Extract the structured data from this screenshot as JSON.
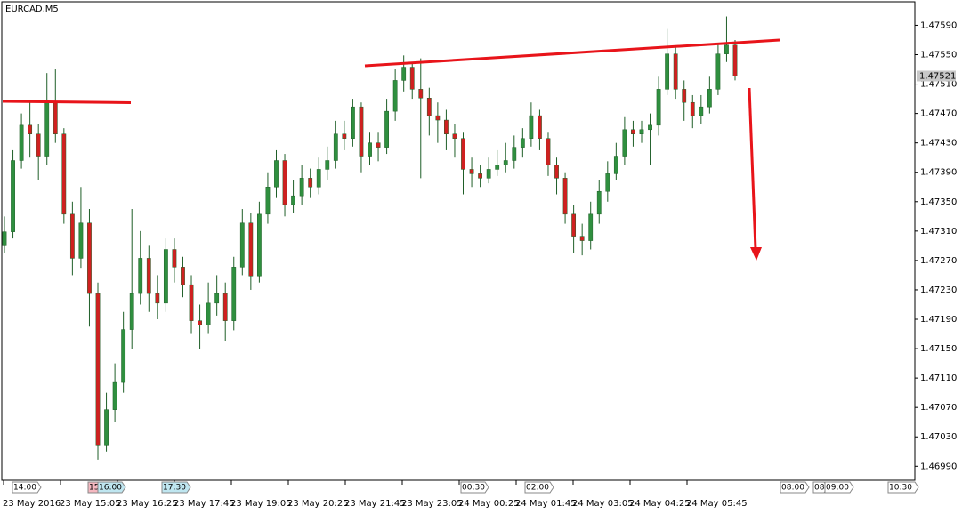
{
  "chart_data": {
    "type": "candlestick",
    "title": "EURCAD,M5",
    "up_color": "#2f8f3f",
    "down_color": "#d02020",
    "ylim": [
      1.46971,
      1.47622
    ],
    "yticks": [
      {
        "value": 1.4699,
        "label": "1.46990"
      },
      {
        "value": 1.4703,
        "label": "1.47030"
      },
      {
        "value": 1.4707,
        "label": "1.47070"
      },
      {
        "value": 1.4711,
        "label": "1.47110"
      },
      {
        "value": 1.4715,
        "label": "1.47150"
      },
      {
        "value": 1.4719,
        "label": "1.47190"
      },
      {
        "value": 1.4723,
        "label": "1.47230"
      },
      {
        "value": 1.4727,
        "label": "1.47270"
      },
      {
        "value": 1.4731,
        "label": "1.47310"
      },
      {
        "value": 1.4735,
        "label": "1.47350"
      },
      {
        "value": 1.4739,
        "label": "1.47390"
      },
      {
        "value": 1.4743,
        "label": "1.47430"
      },
      {
        "value": 1.4747,
        "label": "1.47470"
      },
      {
        "value": 1.4751,
        "label": "1.47510"
      },
      {
        "value": 1.4755,
        "label": "1.47550"
      },
      {
        "value": 1.4759,
        "label": "1.47590"
      }
    ],
    "last_price": {
      "value": 1.47521,
      "label": "1.47521"
    },
    "xlabels": [
      "23 May 2016",
      "23 May 15:05",
      "23 May 16:25",
      "23 May 17:45",
      "23 May 19:05",
      "23 May 20:25",
      "23 May 21:45",
      "23 May 23:05",
      "24 May 00:25",
      "24 May 01:45",
      "24 May 03:05",
      "24 May 04:25",
      "24 May 05:45"
    ],
    "markers": [
      "14:00",
      "15",
      "16:00",
      "17:30",
      "00:30",
      "02:00",
      "08:00",
      "08",
      "09:00",
      "10:30"
    ],
    "ohlc": [
      [
        1.4729,
        1.4733,
        1.4728,
        1.47309
      ],
      [
        1.47309,
        1.4742,
        1.473,
        1.47406
      ],
      [
        1.47406,
        1.4747,
        1.47395,
        1.47454
      ],
      [
        1.47454,
        1.47485,
        1.4741,
        1.47442
      ],
      [
        1.47442,
        1.47455,
        1.4738,
        1.47412
      ],
      [
        1.47412,
        1.47525,
        1.474,
        1.47485
      ],
      [
        1.47485,
        1.4753,
        1.4743,
        1.47442
      ],
      [
        1.47442,
        1.4745,
        1.4732,
        1.47333
      ],
      [
        1.47333,
        1.4735,
        1.4725,
        1.47273
      ],
      [
        1.47273,
        1.4737,
        1.4726,
        1.47321
      ],
      [
        1.47321,
        1.4734,
        1.4718,
        1.47225
      ],
      [
        1.47225,
        1.4724,
        1.46999,
        1.47019
      ],
      [
        1.47019,
        1.4709,
        1.4701,
        1.47067
      ],
      [
        1.47067,
        1.4713,
        1.4705,
        1.47104
      ],
      [
        1.47104,
        1.472,
        1.4709,
        1.47176
      ],
      [
        1.47176,
        1.4734,
        1.4715,
        1.47225
      ],
      [
        1.47225,
        1.4731,
        1.4721,
        1.47273
      ],
      [
        1.47273,
        1.4729,
        1.472,
        1.47225
      ],
      [
        1.47225,
        1.4725,
        1.4719,
        1.47212
      ],
      [
        1.47212,
        1.473,
        1.472,
        1.47285
      ],
      [
        1.47285,
        1.473,
        1.4724,
        1.47261
      ],
      [
        1.47261,
        1.47275,
        1.4722,
        1.47237
      ],
      [
        1.47237,
        1.4725,
        1.4717,
        1.47188
      ],
      [
        1.47188,
        1.4721,
        1.4715,
        1.47182
      ],
      [
        1.47182,
        1.4724,
        1.4717,
        1.47212
      ],
      [
        1.47212,
        1.4725,
        1.47195,
        1.47225
      ],
      [
        1.47225,
        1.4724,
        1.4716,
        1.47188
      ],
      [
        1.47188,
        1.47275,
        1.47175,
        1.47261
      ],
      [
        1.47261,
        1.4734,
        1.4725,
        1.47321
      ],
      [
        1.47321,
        1.47335,
        1.4723,
        1.47249
      ],
      [
        1.47249,
        1.4735,
        1.4724,
        1.47333
      ],
      [
        1.47333,
        1.4739,
        1.4732,
        1.4737
      ],
      [
        1.4737,
        1.4742,
        1.47355,
        1.47406
      ],
      [
        1.47406,
        1.47415,
        1.4733,
        1.47346
      ],
      [
        1.47346,
        1.4738,
        1.47335,
        1.47358
      ],
      [
        1.47358,
        1.474,
        1.47345,
        1.47382
      ],
      [
        1.47382,
        1.47395,
        1.47355,
        1.4737
      ],
      [
        1.4737,
        1.4741,
        1.4736,
        1.47394
      ],
      [
        1.47394,
        1.47425,
        1.4738,
        1.47406
      ],
      [
        1.47406,
        1.4746,
        1.47395,
        1.47442
      ],
      [
        1.47442,
        1.4746,
        1.4742,
        1.47436
      ],
      [
        1.47436,
        1.4749,
        1.47425,
        1.47479
      ],
      [
        1.47479,
        1.47485,
        1.4739,
        1.47412
      ],
      [
        1.47412,
        1.47445,
        1.474,
        1.4743
      ],
      [
        1.4743,
        1.47445,
        1.47405,
        1.47424
      ],
      [
        1.47424,
        1.4749,
        1.47415,
        1.47473
      ],
      [
        1.47473,
        1.4753,
        1.4746,
        1.47515
      ],
      [
        1.47515,
        1.47549,
        1.475,
        1.47533
      ],
      [
        1.47533,
        1.4754,
        1.4749,
        1.47503
      ],
      [
        1.47503,
        1.47545,
        1.47382,
        1.47491
      ],
      [
        1.47491,
        1.47505,
        1.4744,
        1.47467
      ],
      [
        1.47467,
        1.47485,
        1.4743,
        1.47461
      ],
      [
        1.47461,
        1.47475,
        1.4742,
        1.47442
      ],
      [
        1.47442,
        1.47455,
        1.4741,
        1.47436
      ],
      [
        1.47436,
        1.47445,
        1.4736,
        1.47394
      ],
      [
        1.47394,
        1.4741,
        1.4737,
        1.47388
      ],
      [
        1.47388,
        1.474,
        1.4737,
        1.47382
      ],
      [
        1.47382,
        1.4741,
        1.47375,
        1.47394
      ],
      [
        1.47394,
        1.4742,
        1.47385,
        1.474
      ],
      [
        1.474,
        1.4743,
        1.4739,
        1.47406
      ],
      [
        1.47406,
        1.4744,
        1.47395,
        1.47424
      ],
      [
        1.47424,
        1.4745,
        1.4741,
        1.47436
      ],
      [
        1.47436,
        1.47485,
        1.47425,
        1.47467
      ],
      [
        1.47467,
        1.47475,
        1.4742,
        1.47436
      ],
      [
        1.47436,
        1.47445,
        1.47385,
        1.474
      ],
      [
        1.474,
        1.4741,
        1.4736,
        1.47382
      ],
      [
        1.47382,
        1.4739,
        1.4732,
        1.47333
      ],
      [
        1.47333,
        1.47345,
        1.4728,
        1.47303
      ],
      [
        1.47303,
        1.4732,
        1.47277,
        1.47297
      ],
      [
        1.47297,
        1.4735,
        1.47285,
        1.47333
      ],
      [
        1.47333,
        1.4738,
        1.4732,
        1.47364
      ],
      [
        1.47364,
        1.47405,
        1.4735,
        1.47388
      ],
      [
        1.47388,
        1.4743,
        1.4738,
        1.47412
      ],
      [
        1.47412,
        1.47465,
        1.474,
        1.47448
      ],
      [
        1.47448,
        1.4746,
        1.47425,
        1.47442
      ],
      [
        1.47442,
        1.4746,
        1.4743,
        1.47448
      ],
      [
        1.47448,
        1.4747,
        1.474,
        1.47454
      ],
      [
        1.47454,
        1.4752,
        1.4744,
        1.47503
      ],
      [
        1.47503,
        1.47585,
        1.47495,
        1.47551
      ],
      [
        1.47551,
        1.4756,
        1.4749,
        1.47503
      ],
      [
        1.47503,
        1.47515,
        1.4746,
        1.47485
      ],
      [
        1.47485,
        1.47495,
        1.4745,
        1.47467
      ],
      [
        1.47467,
        1.47495,
        1.47455,
        1.47479
      ],
      [
        1.47479,
        1.4752,
        1.4747,
        1.47503
      ],
      [
        1.47503,
        1.47565,
        1.47495,
        1.47551
      ],
      [
        1.47551,
        1.47602,
        1.4754,
        1.47563
      ],
      [
        1.47563,
        1.4757,
        1.47515,
        1.47521
      ]
    ]
  }
}
